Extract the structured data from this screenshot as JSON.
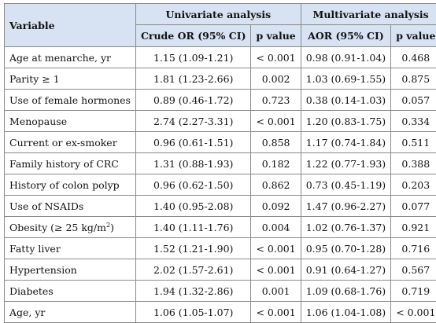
{
  "header": {
    "variable": "Variable",
    "univariate": "Univariate analysis",
    "multivariate": "Multivariate analysis",
    "crude_or": "Crude OR (95% CI)",
    "p_value_1": "p value",
    "aor": "AOR (95% CI)",
    "p_value_2": "p value"
  },
  "rows": [
    {
      "label": "Age at menarche, yr",
      "crude": "1.15 (1.09-1.21)",
      "p1": "< 0.001",
      "aor": "0.98 (0.91-1.04)",
      "p2": "0.468"
    },
    {
      "label": "Parity ≥ 1",
      "crude": "1.81 (1.23-2.66)",
      "p1": "0.002",
      "aor": "1.03 (0.69-1.55)",
      "p2": "0.875"
    },
    {
      "label": "Use of female hormones",
      "crude": "0.89 (0.46-1.72)",
      "p1": "0.723",
      "aor": "0.38 (0.14-1.03)",
      "p2": "0.057"
    },
    {
      "label": "Menopause",
      "crude": "2.74 (2.27-3.31)",
      "p1": "< 0.001",
      "aor": "1.20 (0.83-1.75)",
      "p2": "0.334"
    },
    {
      "label": "Current or ex-smoker",
      "crude": "0.96 (0.61-1.51)",
      "p1": "0.858",
      "aor": "1.17 (0.74-1.84)",
      "p2": "0.511"
    },
    {
      "label": "Family history of CRC",
      "crude": "1.31 (0.88-1.93)",
      "p1": "0.182",
      "aor": "1.22 (0.77-1.93)",
      "p2": "0.388"
    },
    {
      "label": "History of colon polyp",
      "crude": "0.96 (0.62-1.50)",
      "p1": "0.862",
      "aor": "0.73 (0.45-1.19)",
      "p2": "0.203"
    },
    {
      "label": "Use of NSAIDs",
      "crude": "1.40 (0.95-2.08)",
      "p1": "0.092",
      "aor": "1.47 (0.96-2.27)",
      "p2": "0.077"
    },
    {
      "label": "Obesity (≥ 25 kg/m",
      "label_sup": "2",
      "label_tail": ")",
      "crude": "1.40 (1.11-1.76)",
      "p1": "0.004",
      "aor": "1.02 (0.76-1.37)",
      "p2": "0.921"
    },
    {
      "label": "Fatty liver",
      "crude": "1.52 (1.21-1.90)",
      "p1": "< 0.001",
      "aor": "0.95 (0.70-1.28)",
      "p2": "0.716"
    },
    {
      "label": "Hypertension",
      "crude": "2.02 (1.57-2.61)",
      "p1": "< 0.001",
      "aor": "0.91 (0.64-1.27)",
      "p2": "0.567"
    },
    {
      "label": "Diabetes",
      "crude": "1.94 (1.32-2.86)",
      "p1": "0.001",
      "aor": "1.09 (0.68-1.76)",
      "p2": "0.719"
    },
    {
      "label": "Age, yr",
      "crude": "1.06 (1.05-1.07)",
      "p1": "< 0.001",
      "aor": "1.06 (1.04-1.08)",
      "p2": "< 0.001"
    }
  ]
}
